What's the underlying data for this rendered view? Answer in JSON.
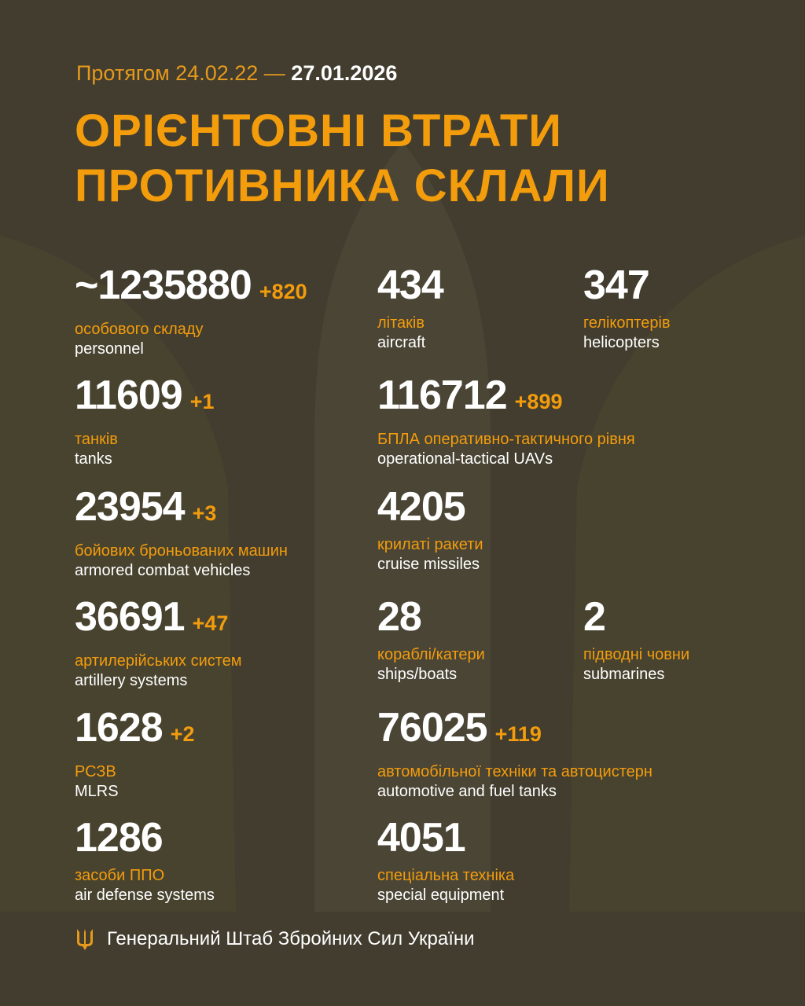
{
  "header": {
    "period_prefix": "Протягом 24.02.22 —",
    "period_end": "27.01.2026",
    "title_line1": "ОРІЄНТОВНІ ВТРАТИ",
    "title_line2": "ПРОТИВНИКА СКЛАЛИ"
  },
  "stats": [
    {
      "value": "~1235880",
      "delta": "+820",
      "ua": "особового складу",
      "en": "personnel"
    },
    {
      "value": "434",
      "delta": "",
      "ua": "літаків",
      "en": "aircraft"
    },
    {
      "value": "347",
      "delta": "",
      "ua": "гелікоптерів",
      "en": "helicopters"
    },
    {
      "value": "11609",
      "delta": "+1",
      "ua": "танків",
      "en": "tanks"
    },
    {
      "value": "116712",
      "delta": "+899",
      "ua": "БПЛА оперативно-тактичного рівня",
      "en": "operational-tactical UAVs"
    },
    {
      "value": "23954",
      "delta": "+3",
      "ua": "бойових броньованих машин",
      "en": "armored combat vehicles"
    },
    {
      "value": "4205",
      "delta": "",
      "ua": "крилаті ракети",
      "en": "cruise missiles"
    },
    {
      "value": "36691",
      "delta": "+47",
      "ua": "артилерійських систем",
      "en": "artillery systems"
    },
    {
      "value": "28",
      "delta": "",
      "ua": "кораблі/катери",
      "en": "ships/boats"
    },
    {
      "value": "2",
      "delta": "",
      "ua": "підводні човни",
      "en": "submarines"
    },
    {
      "value": "1628",
      "delta": "+2",
      "ua": "РСЗВ",
      "en": "MLRS"
    },
    {
      "value": "76025",
      "delta": "+119",
      "ua": "автомобільної техніки та автоцистерн",
      "en": "automotive and fuel tanks"
    },
    {
      "value": "1286",
      "delta": "",
      "ua": "засоби ППО",
      "en": "air defense systems"
    },
    {
      "value": "4051",
      "delta": "",
      "ua": "спеціальна техніка",
      "en": "special equipment"
    }
  ],
  "footer": {
    "org": "Генеральний Штаб Збройних Сил України",
    "icon": "trident-icon"
  },
  "colors": {
    "background": "#423d2f",
    "accent": "#f39c0c",
    "text": "#ffffff"
  }
}
